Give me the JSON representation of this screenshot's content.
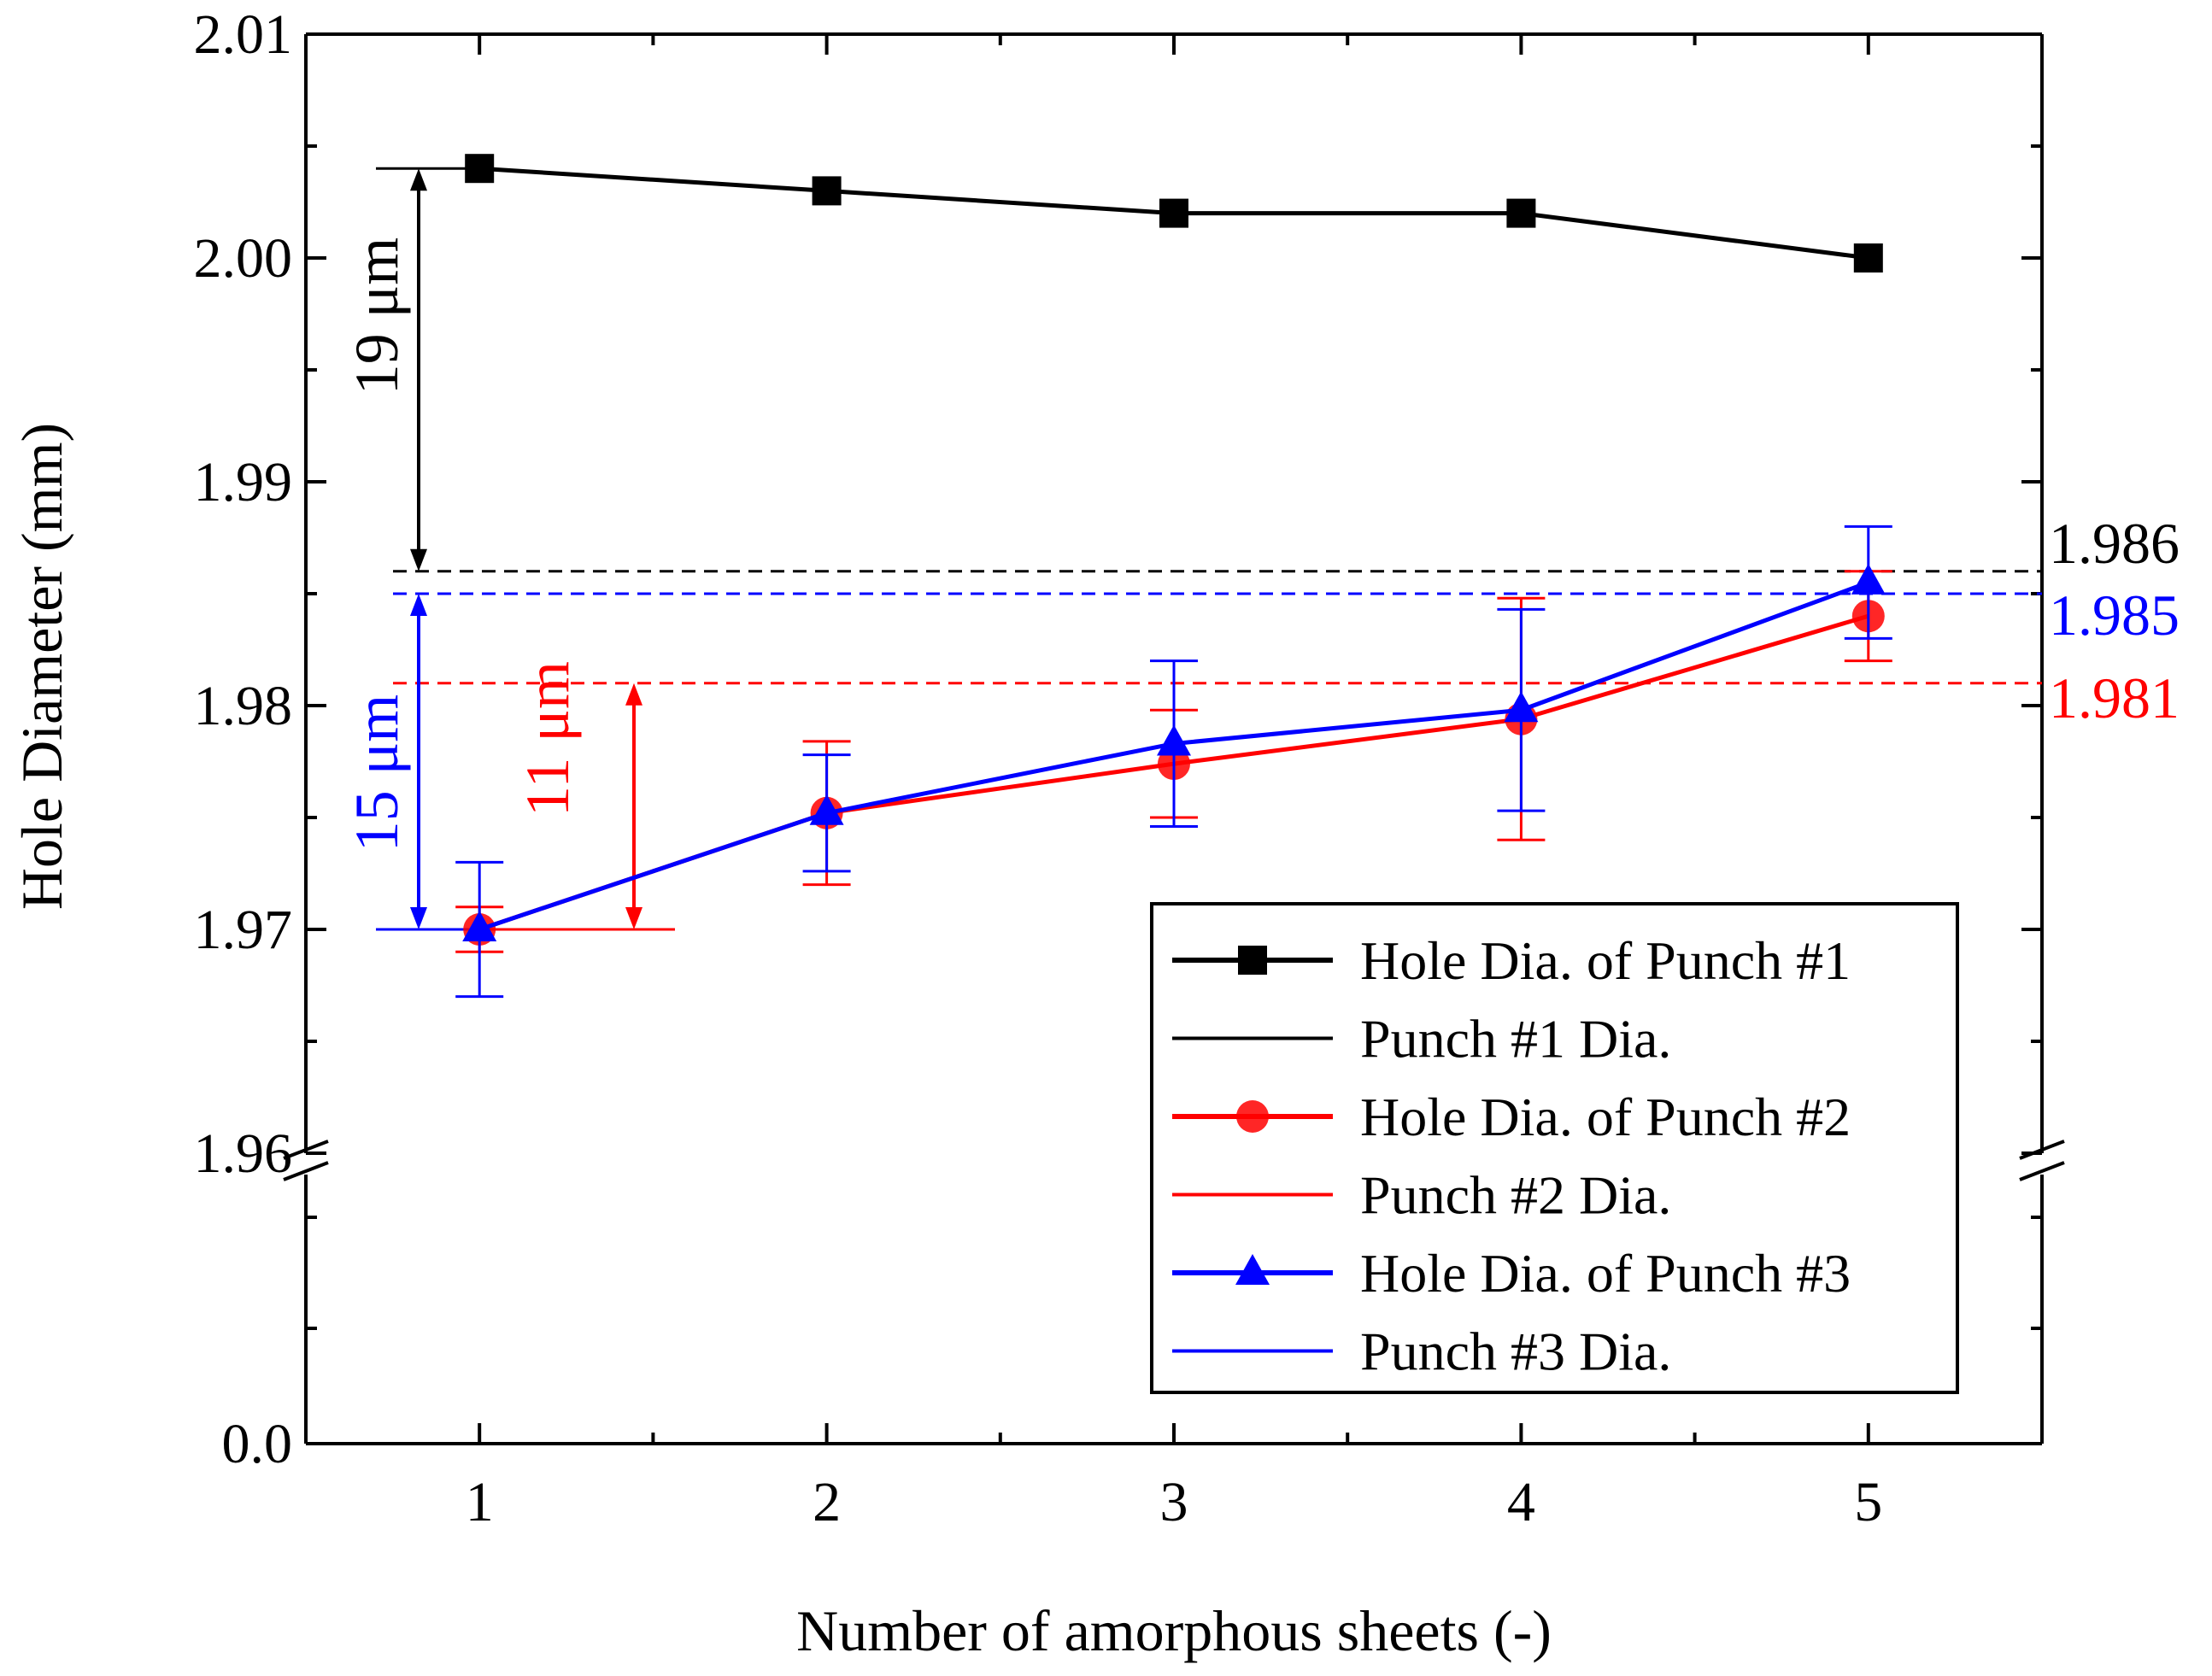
{
  "chart_data": {
    "type": "line",
    "xlabel": "Number of amorphous sheets (-)",
    "ylabel": "Hole Diameter (mm)",
    "x": [
      1,
      2,
      3,
      4,
      5
    ],
    "xlim": [
      0.5,
      5.5
    ],
    "ylim_upper": [
      1.96,
      2.01
    ],
    "ylim_lower_label": "0.0",
    "axis_break": true,
    "y_ticks": [
      "2.01",
      "2.00",
      "1.99",
      "1.98",
      "1.97",
      "1.96"
    ],
    "y_tick_values": [
      2.01,
      2.0,
      1.99,
      1.98,
      1.97,
      1.96
    ],
    "x_ticks": [
      "1",
      "2",
      "3",
      "4",
      "5"
    ],
    "series": [
      {
        "name": "Hole Dia. of Punch #1",
        "color": "#000000",
        "marker": "square",
        "values": [
          2.004,
          2.003,
          2.002,
          2.002,
          2.0
        ],
        "errors": [
          0,
          0,
          0,
          0,
          0
        ]
      },
      {
        "name": "Hole Dia. of Punch #2",
        "color": "#ff0000",
        "marker": "circle",
        "values": [
          1.97,
          1.9752,
          1.9774,
          1.9794,
          1.984
        ],
        "errors": [
          0.001,
          0.0032,
          0.0024,
          0.0054,
          0.002
        ]
      },
      {
        "name": "Hole Dia. of Punch #3",
        "color": "#0000ff",
        "marker": "triangle",
        "values": [
          1.97,
          1.9752,
          1.9783,
          1.9798,
          1.9855
        ],
        "errors": [
          0.003,
          0.0026,
          0.0037,
          0.0045,
          0.0025
        ]
      }
    ],
    "reference_lines": [
      {
        "name": "Punch #1 Dia.",
        "value": 1.986,
        "label": "1.986",
        "color": "#000000"
      },
      {
        "name": "Punch #2 Dia.",
        "value": 1.981,
        "label": "1.981",
        "color": "#ff0000"
      },
      {
        "name": "Punch #3 Dia.",
        "value": 1.985,
        "label": "1.985",
        "color": "#0000ff"
      }
    ],
    "annotations": [
      {
        "text": "19 μm",
        "from": 2.004,
        "to": 1.986,
        "color": "#000000"
      },
      {
        "text": "15 μm",
        "from": 1.985,
        "to": 1.97,
        "color": "#0000ff"
      },
      {
        "text": "11 μm",
        "from": 1.981,
        "to": 1.97,
        "color": "#ff0000"
      }
    ],
    "legend": {
      "position": "bottom-right",
      "entries": [
        {
          "label": "Hole Dia. of Punch #1",
          "color": "#000000",
          "marker": "square"
        },
        {
          "label": "Punch #1 Dia.",
          "color": "#000000",
          "marker": "none"
        },
        {
          "label": "Hole Dia. of Punch #2",
          "color": "#ff0000",
          "marker": "circle"
        },
        {
          "label": "Punch #2 Dia.",
          "color": "#ff0000",
          "marker": "none"
        },
        {
          "label": "Hole Dia. of Punch #3",
          "color": "#0000ff",
          "marker": "triangle"
        },
        {
          "label": "Punch #3 Dia.",
          "color": "#0000ff",
          "marker": "none"
        }
      ]
    }
  }
}
